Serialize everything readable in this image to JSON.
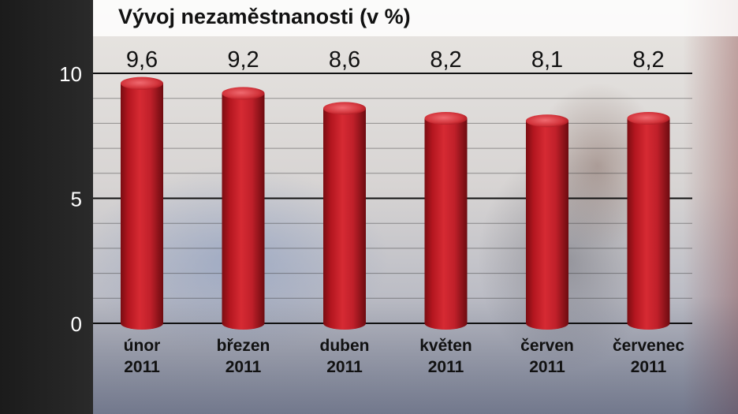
{
  "chart_data": {
    "type": "bar",
    "title": "Vývoj nezaměstnanosti (v %)",
    "xlabel": "",
    "ylabel": "",
    "categories": [
      "únor 2011",
      "březen 2011",
      "duben 2011",
      "květen 2011",
      "červen 2011",
      "červenec 2011"
    ],
    "category_lines": [
      [
        "únor",
        "2011"
      ],
      [
        "březen",
        "2011"
      ],
      [
        "duben",
        "2011"
      ],
      [
        "květen",
        "2011"
      ],
      [
        "červen",
        "2011"
      ],
      [
        "červenec",
        "2011"
      ]
    ],
    "values": [
      9.6,
      9.2,
      8.6,
      8.2,
      8.1,
      8.2
    ],
    "value_labels": [
      "9,6",
      "9,2",
      "8,6",
      "8,2",
      "8,1",
      "8,2"
    ],
    "ylim": [
      0,
      10
    ],
    "yticks": [
      0,
      5,
      10
    ],
    "grid": true,
    "legend": "none",
    "colors": {
      "bar": "#c8202a",
      "bar_dark": "#7a0d12",
      "bar_top": "#e0555b",
      "axis_line": "#111111",
      "grid_line": "#333333",
      "value_text": "#111111",
      "tick_text": "#ffffff",
      "category_text": "#111111"
    }
  }
}
